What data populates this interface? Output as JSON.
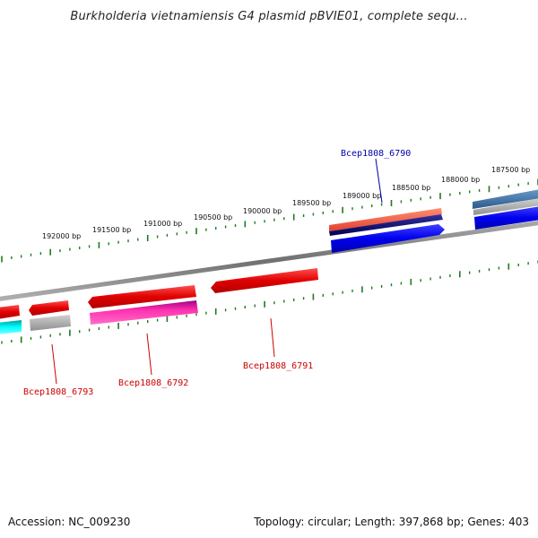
{
  "title": "Burkholderia vietnamiensis G4 plasmid pBVIE01, complete sequ...",
  "footer": {
    "accession": "Accession: NC_009230",
    "summary": "Topology: circular; Length: 397,868 bp; Genes: 403"
  },
  "colors": {
    "tick": "#1e7a1e",
    "backbone": "#808080",
    "label_red": "#cc0000",
    "label_blue": "#0000aa"
  },
  "ruler_labels": [
    "192000 bp",
    "191500 bp",
    "191000 bp",
    "190500 bp",
    "190000 bp",
    "189500 bp",
    "189000 bp",
    "188500 bp",
    "188000 bp",
    "187500 bp"
  ],
  "gene_labels": [
    {
      "id": "bcep-6790",
      "text": "Bcep1808_6790",
      "color": "#0000aa"
    },
    {
      "id": "bcep-6791",
      "text": "Bcep1808_6791",
      "color": "#cc0000"
    },
    {
      "id": "bcep-6792",
      "text": "Bcep1808_6792",
      "color": "#cc0000"
    },
    {
      "id": "bcep-6793",
      "text": "Bcep1808_6793",
      "color": "#cc0000"
    }
  ]
}
